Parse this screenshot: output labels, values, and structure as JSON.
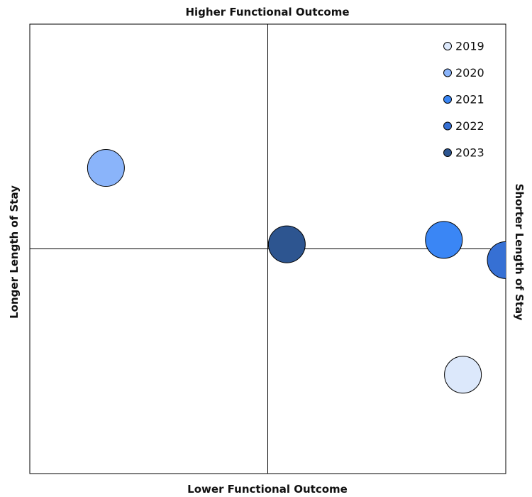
{
  "chart_data": {
    "type": "scatter",
    "subtype": "quadrant-bubble",
    "quadrant_labels": {
      "top": "Higher Functional Outcome",
      "bottom": "Lower Functional Outcome",
      "left": "Longer Length of Stay",
      "right": "Shorter Length of Stay"
    },
    "xlim": [
      -1,
      1
    ],
    "ylim": [
      -1,
      1
    ],
    "grid": false,
    "legend_placement": "top-right",
    "series": [
      {
        "name": "2019",
        "x": 0.82,
        "y": -0.56,
        "color": "#dce8fb"
      },
      {
        "name": "2020",
        "x": -0.68,
        "y": 0.36,
        "color": "#8ab4fa"
      },
      {
        "name": "2021",
        "x": 0.74,
        "y": 0.04,
        "color": "#3a86f5"
      },
      {
        "name": "2022",
        "x": 1.0,
        "y": -0.05,
        "color": "#3670d4"
      },
      {
        "name": "2023",
        "x": 0.08,
        "y": 0.02,
        "color": "#2d5590"
      }
    ]
  }
}
